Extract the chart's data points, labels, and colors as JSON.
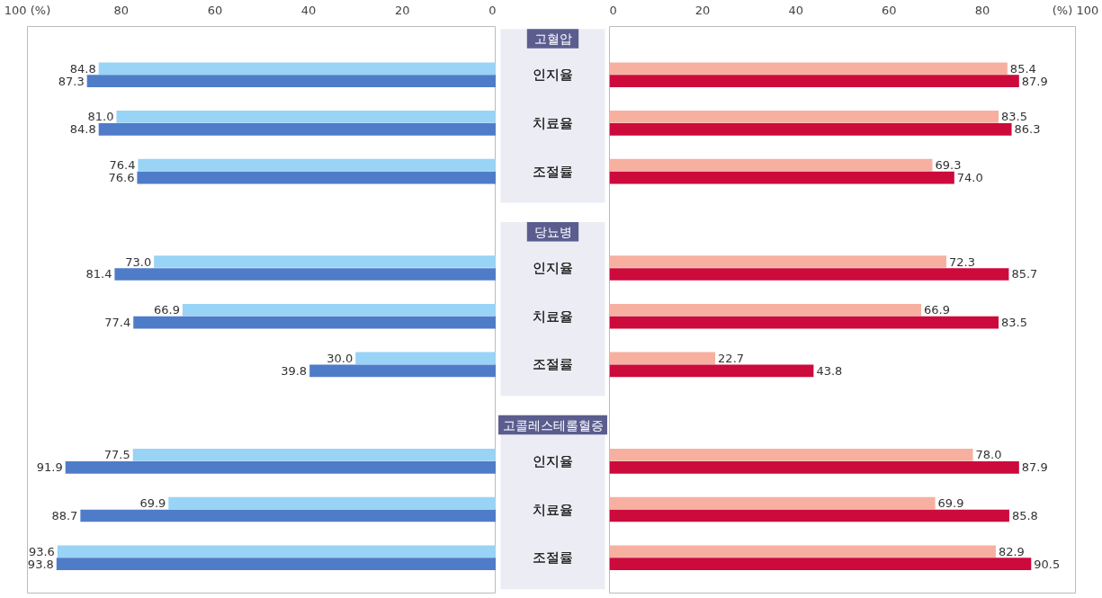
{
  "chart_data": [
    {
      "type": "bar",
      "orientation": "horizontal",
      "categories": [
        "인지율",
        "치료율",
        "조절률",
        "인지율",
        "치료율",
        "조절률",
        "인지율",
        "치료율",
        "조절률"
      ],
      "series": [
        {
          "color": "#99d3f5",
          "values": [
            84.8,
            81.0,
            76.4,
            73.0,
            66.9,
            30.0,
            77.5,
            69.9,
            93.6
          ],
          "value_labels": [
            "84.8",
            "81.0",
            "76.4",
            "73.0",
            "66.9",
            "30.0",
            "77.5",
            "69.9",
            "93.6"
          ]
        },
        {
          "color": "#4f7cc8",
          "values": [
            87.3,
            84.8,
            76.6,
            81.4,
            77.4,
            39.8,
            91.9,
            88.7,
            93.8
          ],
          "value_labels": [
            "87.3",
            "84.8",
            "76.6",
            "81.4",
            "77.4",
            "39.8",
            "91.9",
            "88.7",
            "93.8"
          ]
        }
      ],
      "xlim": [
        100,
        0
      ],
      "xticks": [
        {
          "value": 100,
          "label": "100 (%)"
        },
        80,
        60,
        40,
        20,
        0
      ],
      "tick_labels": "x"
    },
    {
      "type": "bar",
      "orientation": "horizontal",
      "categories": [
        "인지율",
        "치료율",
        "조절률",
        "인지율",
        "치료율",
        "조절률",
        "인지율",
        "치료율",
        "조절률"
      ],
      "annotations": [
        "고혈압",
        "당뇨병",
        "고콜레스테롤혈증"
      ],
      "series": [
        {
          "color": "#f7b0a0",
          "values": [
            85.4,
            83.5,
            69.3,
            72.3,
            66.9,
            22.7,
            78.0,
            69.9,
            82.9
          ],
          "value_labels": [
            "85.4",
            "83.5",
            "69.3",
            "72.3",
            "66.9",
            "22.7",
            "78.0",
            "69.9",
            "82.9"
          ]
        },
        {
          "color": "#cc0a3c",
          "values": [
            87.9,
            86.3,
            74.0,
            85.7,
            83.5,
            43.8,
            87.9,
            85.8,
            90.5
          ],
          "value_labels": [
            "87.9",
            "86.3",
            "74.0",
            "85.7",
            "83.5",
            "43.8",
            "87.9",
            "85.8",
            "90.5"
          ]
        }
      ],
      "xlim": [
        0,
        100
      ],
      "xticks": [
        0,
        20,
        40,
        60,
        80,
        {
          "value": 100,
          "label": "(%) 100"
        }
      ]
    }
  ]
}
